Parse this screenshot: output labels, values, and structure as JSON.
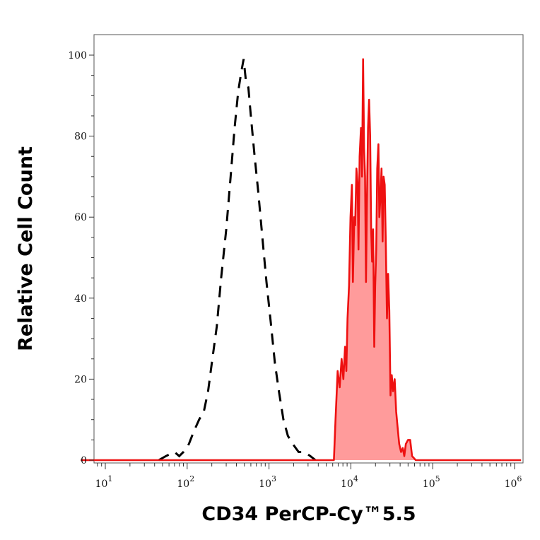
{
  "chart_data": {
    "type": "area",
    "xlabel": "CD34 PerCP-Cy™5.5",
    "ylabel": "Relative Cell Count",
    "x_scale": "log",
    "xlim": [
      5,
      1200000
    ],
    "ylim": [
      0,
      100
    ],
    "x_ticks": [
      {
        "value": 10,
        "base": "10",
        "exp": "1"
      },
      {
        "value": 100,
        "base": "10",
        "exp": "2"
      },
      {
        "value": 1000,
        "base": "10",
        "exp": "3"
      },
      {
        "value": 10000,
        "base": "10",
        "exp": "4"
      },
      {
        "value": 100000,
        "base": "10",
        "exp": "5"
      },
      {
        "value": 1000000,
        "base": "10",
        "exp": "6"
      }
    ],
    "y_ticks": [
      {
        "value": 0,
        "label": "0"
      },
      {
        "value": 20,
        "label": "20"
      },
      {
        "value": 40,
        "label": "40"
      },
      {
        "value": 60,
        "label": "60"
      },
      {
        "value": 80,
        "label": "80"
      },
      {
        "value": 100,
        "label": "100"
      }
    ],
    "grid": false,
    "legend": "none",
    "series": [
      {
        "style": "dashed-line",
        "color": "#000000",
        "points": [
          [
            45,
            0
          ],
          [
            55,
            1
          ],
          [
            70,
            2
          ],
          [
            80,
            1
          ],
          [
            90,
            2
          ],
          [
            105,
            4
          ],
          [
            120,
            7
          ],
          [
            140,
            10
          ],
          [
            160,
            12
          ],
          [
            180,
            17
          ],
          [
            200,
            24
          ],
          [
            230,
            33
          ],
          [
            260,
            45
          ],
          [
            300,
            57
          ],
          [
            340,
            70
          ],
          [
            380,
            82
          ],
          [
            420,
            91
          ],
          [
            460,
            96
          ],
          [
            490,
            99
          ],
          [
            520,
            94
          ],
          [
            560,
            92
          ],
          [
            600,
            85
          ],
          [
            660,
            76
          ],
          [
            740,
            66
          ],
          [
            830,
            55
          ],
          [
            930,
            44
          ],
          [
            1050,
            34
          ],
          [
            1180,
            24
          ],
          [
            1320,
            17
          ],
          [
            1500,
            10
          ],
          [
            1700,
            6
          ],
          [
            1950,
            4
          ],
          [
            2300,
            2
          ],
          [
            2700,
            2
          ],
          [
            3200,
            1
          ],
          [
            3700,
            0
          ]
        ]
      },
      {
        "style": "filled-area",
        "color": "#ee1111",
        "fill": "#ff9b9b",
        "points": [
          [
            5,
            0
          ],
          [
            6200,
            0
          ],
          [
            6500,
            10
          ],
          [
            6900,
            22
          ],
          [
            7300,
            18
          ],
          [
            7700,
            25
          ],
          [
            8100,
            20
          ],
          [
            8500,
            28
          ],
          [
            8800,
            22
          ],
          [
            9100,
            35
          ],
          [
            9500,
            43
          ],
          [
            9900,
            60
          ],
          [
            10300,
            68
          ],
          [
            10600,
            44
          ],
          [
            11000,
            60
          ],
          [
            11300,
            58
          ],
          [
            11700,
            72
          ],
          [
            12100,
            68
          ],
          [
            12400,
            52
          ],
          [
            12800,
            75
          ],
          [
            13300,
            82
          ],
          [
            13700,
            70
          ],
          [
            14100,
            99
          ],
          [
            14500,
            77
          ],
          [
            14900,
            70
          ],
          [
            15300,
            44
          ],
          [
            15700,
            63
          ],
          [
            16200,
            82
          ],
          [
            16700,
            89
          ],
          [
            17200,
            80
          ],
          [
            17700,
            57
          ],
          [
            18200,
            49
          ],
          [
            18700,
            57
          ],
          [
            19300,
            28
          ],
          [
            19800,
            43
          ],
          [
            20400,
            52
          ],
          [
            21000,
            72
          ],
          [
            21700,
            78
          ],
          [
            22300,
            60
          ],
          [
            23000,
            65
          ],
          [
            23700,
            72
          ],
          [
            24400,
            54
          ],
          [
            25100,
            70
          ],
          [
            25900,
            68
          ],
          [
            26700,
            54
          ],
          [
            27600,
            35
          ],
          [
            28500,
            46
          ],
          [
            29500,
            37
          ],
          [
            30500,
            16
          ],
          [
            31600,
            21
          ],
          [
            32800,
            17
          ],
          [
            34300,
            20
          ],
          [
            35800,
            12
          ],
          [
            37300,
            8
          ],
          [
            39000,
            4
          ],
          [
            41000,
            2
          ],
          [
            43000,
            3
          ],
          [
            45000,
            1
          ],
          [
            47000,
            4
          ],
          [
            50000,
            5
          ],
          [
            53000,
            5
          ],
          [
            56000,
            1
          ],
          [
            62000,
            0
          ],
          [
            1200000,
            0
          ]
        ]
      }
    ]
  }
}
